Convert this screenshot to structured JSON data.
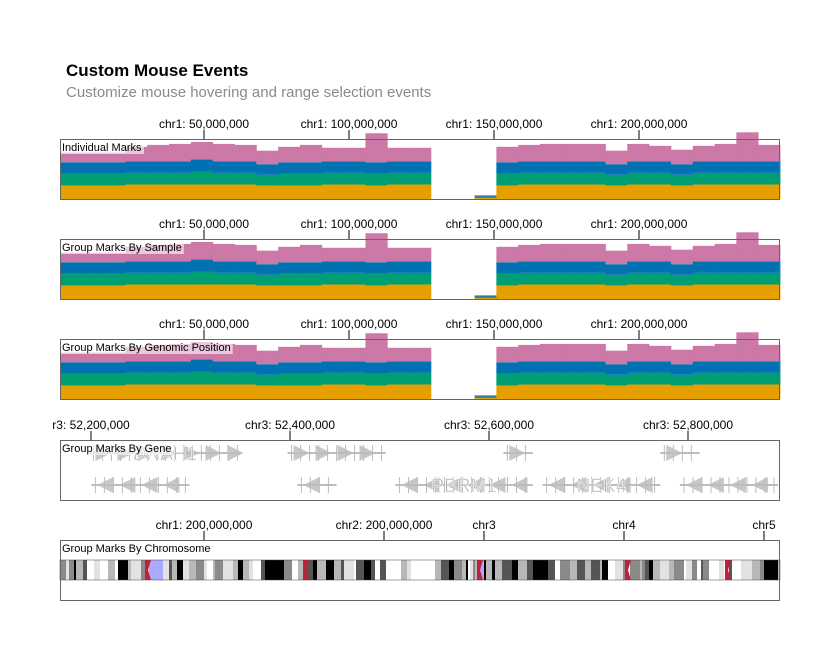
{
  "header": {
    "title": "Custom Mouse Events",
    "subtitle": "Customize mouse hovering and range selection events"
  },
  "colors": {
    "series": [
      "#E69F00",
      "#009E73",
      "#0072B2",
      "#CC79A7"
    ],
    "gene": "#bdbdbd",
    "gene_label": "#b0b0b0",
    "centromere": "#c41e3a",
    "selection": "#aaaaff",
    "frame": "#666666"
  },
  "chart_data": [
    {
      "type": "area",
      "panel_label": "Individual Marks",
      "axis_ticks": [
        "chr1: 50,000,000",
        "chr1: 100,000,000",
        "chr1: 150,000,000",
        "chr1: 200,000,000"
      ],
      "series": [
        {
          "values": [
            14,
            14,
            14,
            15,
            15,
            15,
            15,
            15,
            15,
            14,
            14,
            14,
            15,
            15,
            14,
            15,
            15,
            0,
            0,
            1,
            14,
            15,
            15,
            15,
            15,
            14,
            15,
            15,
            14,
            15,
            15,
            15,
            15
          ]
        },
        {
          "values": [
            12,
            12,
            12,
            12,
            12,
            12,
            13,
            12,
            12,
            11,
            12,
            12,
            12,
            12,
            12,
            12,
            12,
            0,
            0,
            1,
            12,
            12,
            12,
            12,
            12,
            11,
            12,
            12,
            11,
            12,
            12,
            12,
            12
          ]
        },
        {
          "values": [
            12,
            12,
            12,
            12,
            12,
            12,
            13,
            12,
            12,
            11,
            12,
            12,
            12,
            12,
            12,
            12,
            12,
            0,
            0,
            1,
            12,
            12,
            12,
            12,
            12,
            11,
            12,
            12,
            11,
            12,
            12,
            12,
            12
          ]
        },
        {
          "values": [
            10,
            10,
            10,
            15,
            17,
            18,
            18,
            18,
            17,
            14,
            16,
            18,
            14,
            14,
            30,
            14,
            14,
            0,
            0,
            1,
            16,
            17,
            18,
            18,
            18,
            14,
            18,
            16,
            15,
            16,
            18,
            30,
            17
          ]
        }
      ]
    },
    {
      "type": "area",
      "panel_label": "Group Marks By Sample",
      "axis_ticks": [
        "chr1: 50,000,000",
        "chr1: 100,000,000",
        "chr1: 150,000,000",
        "chr1: 200,000,000"
      ],
      "series": [
        {
          "values": [
            14,
            14,
            14,
            15,
            15,
            15,
            15,
            15,
            15,
            14,
            14,
            14,
            15,
            15,
            14,
            15,
            15,
            0,
            0,
            1,
            14,
            15,
            15,
            15,
            15,
            14,
            15,
            15,
            14,
            15,
            15,
            15,
            15
          ]
        },
        {
          "values": [
            12,
            12,
            12,
            12,
            12,
            12,
            13,
            12,
            12,
            11,
            12,
            12,
            12,
            12,
            12,
            12,
            12,
            0,
            0,
            1,
            12,
            12,
            12,
            12,
            12,
            11,
            12,
            12,
            11,
            12,
            12,
            12,
            12
          ]
        },
        {
          "values": [
            12,
            12,
            12,
            12,
            12,
            12,
            13,
            12,
            12,
            11,
            12,
            12,
            12,
            12,
            12,
            12,
            12,
            0,
            0,
            1,
            12,
            12,
            12,
            12,
            12,
            11,
            12,
            12,
            11,
            12,
            12,
            12,
            12
          ]
        },
        {
          "values": [
            10,
            10,
            10,
            15,
            17,
            18,
            18,
            18,
            17,
            14,
            16,
            18,
            14,
            14,
            30,
            14,
            14,
            0,
            0,
            1,
            16,
            17,
            18,
            18,
            18,
            14,
            18,
            16,
            15,
            16,
            18,
            30,
            17
          ]
        }
      ]
    },
    {
      "type": "area",
      "panel_label": "Group Marks By Genomic Position",
      "axis_ticks": [
        "chr1: 50,000,000",
        "chr1: 100,000,000",
        "chr1: 150,000,000",
        "chr1: 200,000,000"
      ],
      "series": [
        {
          "values": [
            14,
            14,
            14,
            15,
            15,
            15,
            15,
            15,
            15,
            14,
            14,
            14,
            15,
            15,
            14,
            15,
            15,
            0,
            0,
            1,
            14,
            15,
            15,
            15,
            15,
            14,
            15,
            15,
            14,
            15,
            15,
            15,
            15
          ]
        },
        {
          "values": [
            12,
            12,
            12,
            12,
            12,
            12,
            13,
            12,
            12,
            11,
            12,
            12,
            12,
            12,
            12,
            12,
            12,
            0,
            0,
            1,
            12,
            12,
            12,
            12,
            12,
            11,
            12,
            12,
            11,
            12,
            12,
            12,
            12
          ]
        },
        {
          "values": [
            12,
            12,
            12,
            12,
            12,
            12,
            13,
            12,
            12,
            11,
            12,
            12,
            12,
            12,
            12,
            12,
            12,
            0,
            0,
            1,
            12,
            12,
            12,
            12,
            12,
            11,
            12,
            12,
            11,
            12,
            12,
            12,
            12
          ]
        },
        {
          "values": [
            10,
            10,
            10,
            15,
            17,
            18,
            18,
            18,
            17,
            14,
            16,
            18,
            14,
            14,
            30,
            14,
            14,
            0,
            0,
            1,
            16,
            17,
            18,
            18,
            18,
            14,
            18,
            16,
            15,
            16,
            18,
            30,
            17
          ]
        }
      ]
    },
    {
      "type": "gene-track",
      "panel_label": "Group Marks By Gene",
      "axis_ticks": [
        "r3: 52,200,000",
        "chr3: 52,400,000",
        "chr3: 52,600,000",
        "chr3: 52,800,000"
      ],
      "genes": [
        {
          "name": "DNAH1",
          "strand": "+",
          "row": 1,
          "start": 52198000,
          "end": 52352000
        },
        {
          "name": "",
          "strand": "+",
          "row": 1,
          "start": 52400000,
          "end": 52500000
        },
        {
          "name": "",
          "strand": "+",
          "row": 1,
          "start": 52620000,
          "end": 52650000
        },
        {
          "name": "",
          "strand": "+",
          "row": 1,
          "start": 52780000,
          "end": 52820000
        },
        {
          "name": "",
          "strand": "-",
          "row": 2,
          "start": 52200000,
          "end": 52300000
        },
        {
          "name": "",
          "strand": "-",
          "row": 2,
          "start": 52410000,
          "end": 52450000
        },
        {
          "name": "PBRM1",
          "strand": "-",
          "row": 2,
          "start": 52510000,
          "end": 52650000
        },
        {
          "name": "NEK4",
          "strand": "-",
          "row": 2,
          "start": 52660000,
          "end": 52780000
        },
        {
          "name": "",
          "strand": "-",
          "row": 2,
          "start": 52800000,
          "end": 52900000
        }
      ]
    },
    {
      "type": "ideogram",
      "panel_label": "Group Marks By Chromosome",
      "axis_ticks": [
        "chr1: 200,000,000",
        "chr2: 200,000,000",
        "chr3",
        "chr4",
        "chr5"
      ]
    }
  ]
}
